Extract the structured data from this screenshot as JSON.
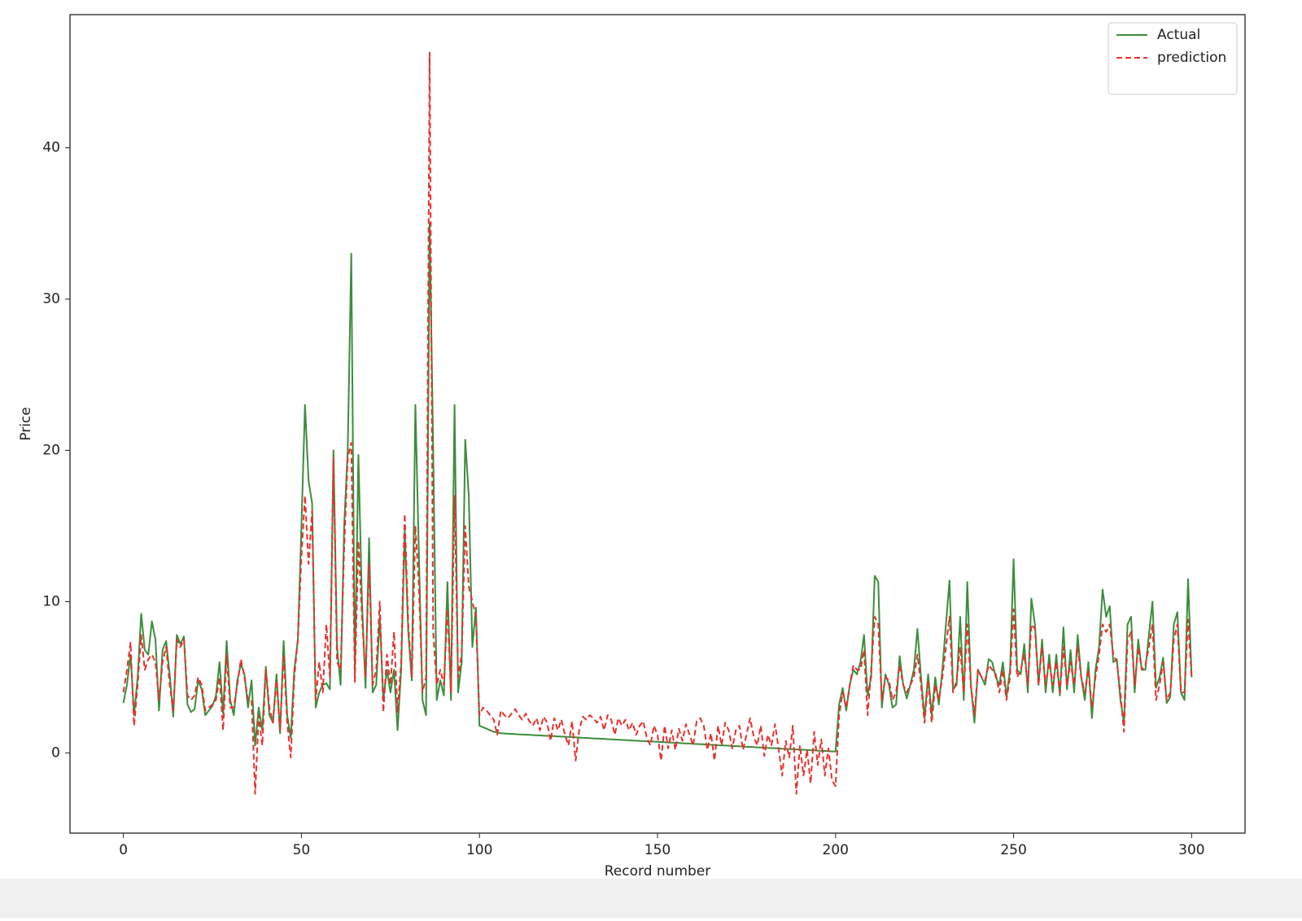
{
  "chart_data": {
    "type": "line",
    "xlabel": "Record number",
    "ylabel": "Price",
    "xlim": [
      -15,
      315
    ],
    "ylim": [
      -5.3,
      48.8
    ],
    "xticks": [
      0,
      50,
      100,
      150,
      200,
      250,
      300
    ],
    "yticks": [
      0,
      10,
      20,
      30,
      40
    ],
    "legend": "upper right",
    "x": [
      0,
      1,
      2,
      3,
      4,
      5,
      6,
      7,
      8,
      9,
      10,
      11,
      12,
      13,
      14,
      15,
      16,
      17,
      18,
      19,
      20,
      21,
      22,
      23,
      24,
      25,
      26,
      27,
      28,
      29,
      30,
      31,
      32,
      33,
      34,
      35,
      36,
      37,
      38,
      39,
      40,
      41,
      42,
      43,
      44,
      45,
      46,
      47,
      48,
      49,
      50,
      51,
      52,
      53,
      54,
      55,
      56,
      57,
      58,
      59,
      60,
      61,
      62,
      63,
      64,
      65,
      66,
      67,
      68,
      69,
      70,
      71,
      72,
      73,
      74,
      75,
      76,
      77,
      78,
      79,
      80,
      81,
      82,
      83,
      84,
      85,
      86,
      87,
      88,
      89,
      90,
      91,
      92,
      93,
      94,
      95,
      96,
      97,
      98,
      99,
      100,
      101,
      102,
      103,
      104,
      105,
      106,
      107,
      108,
      109,
      110,
      111,
      112,
      113,
      114,
      115,
      116,
      117,
      118,
      119,
      120,
      121,
      122,
      123,
      124,
      125,
      126,
      127,
      128,
      129,
      130,
      131,
      132,
      133,
      134,
      135,
      136,
      137,
      138,
      139,
      140,
      141,
      142,
      143,
      144,
      145,
      146,
      147,
      148,
      149,
      150,
      151,
      152,
      153,
      154,
      155,
      156,
      157,
      158,
      159,
      160,
      161,
      162,
      163,
      164,
      165,
      166,
      167,
      168,
      169,
      170,
      171,
      172,
      173,
      174,
      175,
      176,
      177,
      178,
      179,
      180,
      181,
      182,
      183,
      184,
      185,
      186,
      187,
      188,
      189,
      190,
      191,
      192,
      193,
      194,
      195,
      196,
      197,
      198,
      199,
      200,
      201,
      202,
      203,
      204,
      205,
      206,
      207,
      208,
      209,
      210,
      211,
      212,
      213,
      214,
      215,
      216,
      217,
      218,
      219,
      220,
      221,
      222,
      223,
      224,
      225,
      226,
      227,
      228,
      229,
      230,
      231,
      232,
      233,
      234,
      235,
      236,
      237,
      238,
      239,
      240,
      241,
      242,
      243,
      244,
      245,
      246,
      247,
      248,
      249,
      250,
      251,
      252,
      253,
      254,
      255,
      256,
      257,
      258,
      259,
      260,
      261,
      262,
      263,
      264,
      265,
      266,
      267,
      268,
      269,
      270,
      271,
      272,
      273,
      274,
      275,
      276,
      277,
      278,
      279,
      280,
      281,
      282,
      283,
      284,
      285,
      286,
      287,
      288,
      289,
      290,
      291,
      292,
      293,
      294,
      295,
      296,
      297,
      298,
      299,
      300
    ],
    "series": [
      {
        "name": "Actual",
        "color": "#3c8c3c",
        "dash": "solid",
        "values": [
          3.3,
          4.5,
          6.5,
          2.5,
          5,
          9.2,
          6.8,
          6.5,
          8.7,
          7.5,
          2.8,
          6.8,
          7.4,
          5.2,
          2.4,
          7.8,
          7.2,
          7.7,
          3.2,
          2.7,
          2.9,
          4.8,
          4.2,
          2.5,
          2.8,
          3.1,
          3.8,
          6,
          2.6,
          7.4,
          3.5,
          2.5,
          4.8,
          5.9,
          5.2,
          3,
          4.8,
          0.5,
          3,
          1.5,
          5.7,
          2.5,
          2,
          5.2,
          1.3,
          7.4,
          2.5,
          1,
          5.5,
          7.5,
          15,
          23,
          18,
          16.5,
          3,
          4,
          4.5,
          4.6,
          4.2,
          20,
          7,
          4.5,
          15,
          20,
          33,
          5.3,
          19.7,
          10,
          4.3,
          14.2,
          4,
          4.5,
          9,
          3.5,
          5.5,
          4,
          5.5,
          1.5,
          5.5,
          14.7,
          8,
          4.8,
          23,
          13,
          3.5,
          2.5,
          35,
          20,
          3.5,
          4.8,
          3.8,
          11.3,
          3.5,
          23,
          4,
          6,
          20.7,
          17,
          7,
          9.6,
          1.8,
          1.7,
          1.6,
          1.5,
          1.4,
          1.35,
          1.3,
          1.29,
          1.27,
          1.26,
          1.25,
          1.23,
          1.22,
          1.21,
          1.2,
          1.18,
          1.17,
          1.16,
          1.14,
          1.13,
          1.12,
          1.11,
          1.09,
          1.08,
          1.07,
          1.05,
          1.04,
          1.03,
          1.02,
          1.0,
          0.99,
          0.98,
          0.96,
          0.95,
          0.94,
          0.93,
          0.91,
          0.9,
          0.89,
          0.87,
          0.86,
          0.85,
          0.84,
          0.82,
          0.81,
          0.8,
          0.78,
          0.77,
          0.76,
          0.75,
          0.73,
          0.72,
          0.71,
          0.69,
          0.68,
          0.67,
          0.66,
          0.64,
          0.63,
          0.62,
          0.6,
          0.59,
          0.58,
          0.57,
          0.55,
          0.54,
          0.53,
          0.51,
          0.5,
          0.49,
          0.48,
          0.46,
          0.45,
          0.44,
          0.42,
          0.41,
          0.4,
          0.39,
          0.37,
          0.36,
          0.35,
          0.33,
          0.32,
          0.31,
          0.3,
          0.28,
          0.27,
          0.26,
          0.24,
          0.23,
          0.22,
          0.21,
          0.19,
          0.18,
          0.17,
          0.15,
          0.14,
          0.13,
          0.12,
          0.1,
          0.1,
          3.2,
          4.3,
          2.8,
          4.5,
          5.5,
          5.2,
          6,
          7.8,
          3.8,
          5,
          11.7,
          11.3,
          3,
          5.2,
          4.5,
          3,
          3.2,
          6.4,
          4.5,
          3.6,
          4.5,
          5.5,
          8.2,
          5,
          2.3,
          5.2,
          2.5,
          5,
          3.2,
          5.5,
          8.5,
          11.4,
          4.2,
          4.5,
          9,
          3.5,
          11.3,
          4.5,
          2,
          5.5,
          5,
          4.5,
          6.2,
          6,
          5,
          4.5,
          6,
          3.7,
          5.5,
          12.8,
          5.5,
          5.2,
          7.2,
          4,
          10.2,
          8.5,
          4.5,
          7.5,
          4,
          6.5,
          4,
          6.5,
          3.8,
          8.3,
          4.2,
          6.8,
          4,
          7.8,
          5,
          3.5,
          6,
          2.3,
          5.5,
          7,
          10.8,
          9,
          9.7,
          6,
          6.2,
          3.5,
          2,
          8.5,
          9,
          4,
          7.5,
          5.5,
          5.5,
          7.8,
          10,
          4.3,
          5,
          6.3,
          3.3,
          3.7,
          8.5,
          9.3,
          4,
          3.5,
          11.5,
          5
        ]
      },
      {
        "name": "prediction",
        "color": "#e8302c",
        "dash": "dashed",
        "values": [
          4,
          5.5,
          7.3,
          1.8,
          4.5,
          7.8,
          5.5,
          6.2,
          6.5,
          6,
          3.5,
          6,
          7,
          4.5,
          2.8,
          7.5,
          7,
          7.5,
          3.8,
          3.5,
          3.8,
          5,
          4.5,
          2.8,
          3,
          3.2,
          3.5,
          5,
          1.5,
          6.5,
          3,
          3,
          4.5,
          6.2,
          5,
          3.5,
          3.5,
          -2.7,
          2.5,
          0.5,
          5.5,
          3,
          2,
          4.8,
          1.5,
          6.5,
          2,
          -0.3,
          5,
          7.5,
          13,
          17,
          12.5,
          16,
          3.5,
          6,
          4,
          8.5,
          5,
          19.5,
          6,
          5.5,
          13.5,
          19.5,
          20.5,
          4.7,
          14,
          9,
          5,
          12.5,
          4.5,
          5.5,
          10,
          2.7,
          6.5,
          4.5,
          8,
          2.7,
          6,
          15.8,
          8.5,
          5,
          15,
          11,
          4,
          5,
          46.3,
          8,
          4.5,
          5.5,
          4.5,
          9.5,
          4,
          17,
          5,
          6.5,
          15,
          11,
          10,
          9,
          2.5,
          3,
          2.8,
          2.5,
          2.2,
          1.2,
          2.8,
          2.5,
          2.3,
          2.6,
          2.9,
          2.5,
          2.2,
          2.6,
          2.1,
          1.8,
          2.3,
          1.5,
          2.4,
          2,
          0.8,
          2.3,
          1.5,
          2.2,
          1.2,
          0.5,
          2.1,
          -0.5,
          1.5,
          2.4,
          2.2,
          2.5,
          2.3,
          2,
          2.4,
          1.5,
          2.5,
          2.2,
          1.2,
          2.3,
          1.8,
          2.2,
          1.5,
          2,
          1.2,
          1.8,
          2.1,
          1,
          0.5,
          1.8,
          1.2,
          -0.5,
          1.8,
          0.3,
          1.5,
          0.2,
          1.6,
          0.8,
          1.9,
          1.2,
          0.5,
          2.1,
          2.3,
          1.8,
          0.2,
          1.3,
          -0.5,
          1.8,
          0.5,
          2,
          1.5,
          0.3,
          1.5,
          1.8,
          0.2,
          1.2,
          2.3,
          1.1,
          0.5,
          1.8,
          -0.2,
          1.2,
          0.5,
          1.9,
          0.3,
          -1.5,
          0.8,
          -0.3,
          1.8,
          -2.7,
          0.5,
          -1.5,
          0.2,
          -2,
          1.4,
          -0.8,
          0.9,
          -1.5,
          0.3,
          -1.8,
          -2.2,
          2.5,
          4,
          3,
          4.5,
          5.8,
          5.5,
          5.5,
          6.8,
          2.5,
          5.5,
          9,
          8.5,
          3.5,
          5,
          4.8,
          3.5,
          4,
          5.8,
          4.5,
          4,
          4.5,
          5,
          6.5,
          4.5,
          2,
          4.8,
          2,
          4.5,
          3.5,
          5,
          7,
          9,
          4,
          4.8,
          7,
          4,
          8.5,
          4.5,
          2.5,
          5.5,
          5,
          4.8,
          5.8,
          5.5,
          5.2,
          4,
          5.5,
          3.5,
          5,
          9.5,
          5,
          5.5,
          6.5,
          4.5,
          8.5,
          8.2,
          4.5,
          7,
          4.5,
          6,
          4.5,
          6,
          4,
          7,
          4.5,
          6,
          4.5,
          7,
          5,
          4,
          5.5,
          3,
          5,
          6.5,
          8.5,
          8,
          8.5,
          6.5,
          6,
          4,
          1.4,
          7.5,
          8,
          4.5,
          7,
          5.5,
          5.8,
          7,
          8.5,
          3.5,
          4.5,
          6,
          3.5,
          4,
          7.5,
          8.5,
          4,
          4,
          8.8,
          5
        ]
      }
    ]
  }
}
